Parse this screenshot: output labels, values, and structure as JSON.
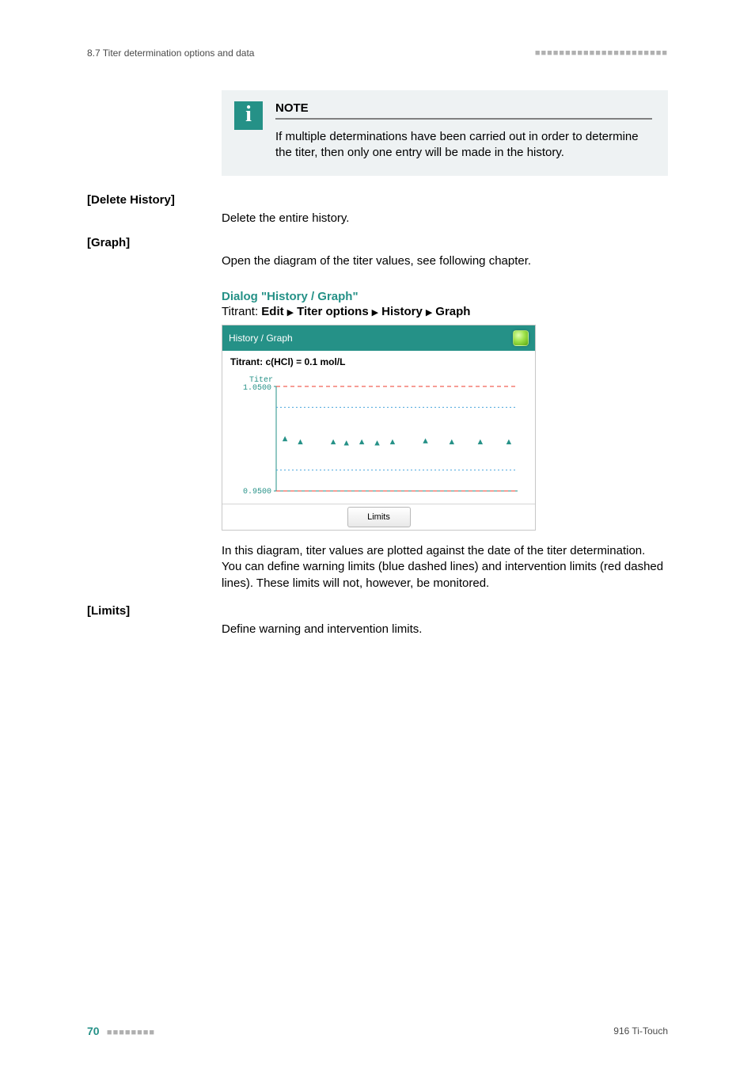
{
  "running_head": {
    "section": "8.7 Titer determination options and data",
    "dashes": "■■■■■■■■■■■■■■■■■■■■■■"
  },
  "note": {
    "label": "NOTE",
    "icon": "i",
    "text": "If multiple determinations have been carried out in order to determine the titer, then only one entry will be made in the history."
  },
  "entries": {
    "delete_history": {
      "label": "[Delete History]",
      "body": "Delete the entire history."
    },
    "graph_btn": {
      "label": "[Graph]",
      "body": "Open the diagram of the titer values, see following chapter."
    },
    "dialog_heading": "Dialog \"History / Graph\"",
    "breadcrumb": {
      "prefix": "Titrant: ",
      "parts": [
        "Edit",
        "Titer options",
        "History",
        "Graph"
      ]
    },
    "diagram_para": "In this diagram, titer values are plotted against the date of the titer determination. You can define warning limits (blue dashed lines) and intervention limits (red dashed lines). These limits will not, however, be monitored.",
    "limits": {
      "label": "[Limits]",
      "body": "Define warning and intervention limits."
    }
  },
  "screenshot": {
    "titlebar": "History / Graph",
    "subtitle": "Titrant: c(HCl) = 0.1 mol/L",
    "y_label": "Titer",
    "y_top": "1.0500",
    "y_bottom": "0.9500",
    "limits_btn": "Limits",
    "colors": {
      "titlebar_bg": "#259187",
      "intervention_line": "#ef3b2c",
      "warning_line": "#4aa6dd",
      "marker": "#259187",
      "axis": "#259187",
      "tick_text": "#259187"
    },
    "plot": {
      "xlim": [
        0,
        11
      ],
      "ylim": [
        0.95,
        1.05
      ],
      "markers_x": [
        0.4,
        1.1,
        2.6,
        3.2,
        3.9,
        4.6,
        5.3,
        6.8,
        8.0,
        9.3,
        10.6
      ],
      "markers_y": [
        1.0,
        0.997,
        0.997,
        0.996,
        0.997,
        0.996,
        0.997,
        0.998,
        0.997,
        0.997,
        0.997
      ],
      "red_lines_y": [
        1.05,
        0.95
      ],
      "blue_lines_y": [
        1.03,
        0.97
      ]
    }
  },
  "footer": {
    "page": "70",
    "dashes": "■■■■■■■■",
    "product": "916 Ti-Touch"
  }
}
